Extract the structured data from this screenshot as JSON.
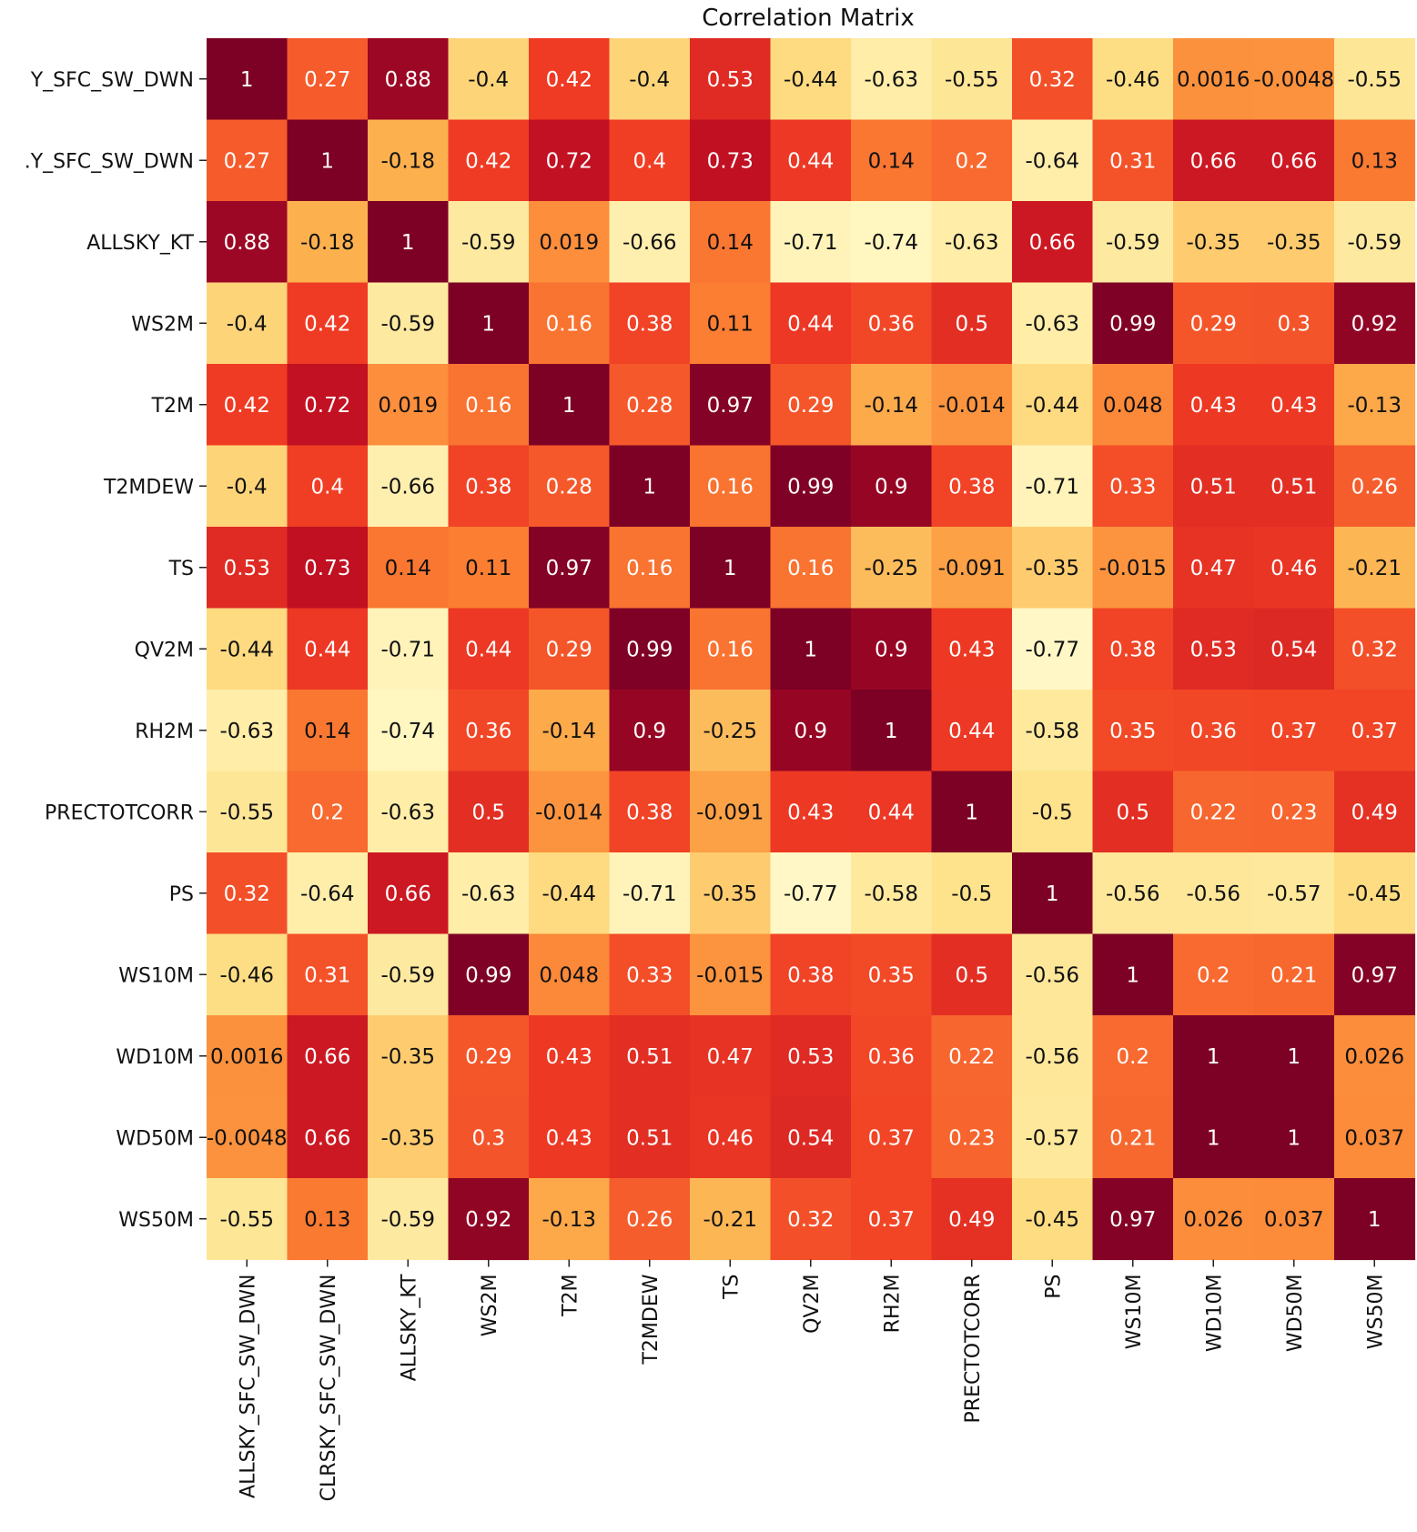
{
  "chart_data": {
    "type": "heatmap",
    "title": "Correlation Matrix",
    "colormap": "YlOrRd",
    "value_range": [
      -0.77,
      1
    ],
    "row_labels": [
      "Y_SFC_SW_DWN",
      ".Y_SFC_SW_DWN",
      "ALLSKY_KT",
      "WS2M",
      "T2M",
      "T2MDEW",
      "TS",
      "QV2M",
      "RH2M",
      "PRECTOTCORR",
      "PS",
      "WS10M",
      "WD10M",
      "WD50M",
      "WS50M"
    ],
    "col_labels": [
      "ALLSKY_SFC_SW_DWN",
      "CLRSKY_SFC_SW_DWN",
      "ALLSKY_KT",
      "WS2M",
      "T2M",
      "T2MDEW",
      "TS",
      "QV2M",
      "RH2M",
      "PRECTOTCORR",
      "PS",
      "WS10M",
      "WD10M",
      "WD50M",
      "WS50M"
    ],
    "values": [
      [
        1,
        0.27,
        0.88,
        -0.4,
        0.42,
        -0.4,
        0.53,
        -0.44,
        -0.63,
        -0.55,
        0.32,
        -0.46,
        0.0016,
        -0.0048,
        -0.55
      ],
      [
        0.27,
        1,
        -0.18,
        0.42,
        0.72,
        0.4,
        0.73,
        0.44,
        0.14,
        0.2,
        -0.64,
        0.31,
        0.66,
        0.66,
        0.13
      ],
      [
        0.88,
        -0.18,
        1,
        -0.59,
        0.019,
        -0.66,
        0.14,
        -0.71,
        -0.74,
        -0.63,
        0.66,
        -0.59,
        -0.35,
        -0.35,
        -0.59
      ],
      [
        -0.4,
        0.42,
        -0.59,
        1,
        0.16,
        0.38,
        0.11,
        0.44,
        0.36,
        0.5,
        -0.63,
        0.99,
        0.29,
        0.3,
        0.92
      ],
      [
        0.42,
        0.72,
        0.019,
        0.16,
        1,
        0.28,
        0.97,
        0.29,
        -0.14,
        -0.014,
        -0.44,
        0.048,
        0.43,
        0.43,
        -0.13
      ],
      [
        -0.4,
        0.4,
        -0.66,
        0.38,
        0.28,
        1,
        0.16,
        0.99,
        0.9,
        0.38,
        -0.71,
        0.33,
        0.51,
        0.51,
        0.26
      ],
      [
        0.53,
        0.73,
        0.14,
        0.11,
        0.97,
        0.16,
        1,
        0.16,
        -0.25,
        -0.091,
        -0.35,
        -0.015,
        0.47,
        0.46,
        -0.21
      ],
      [
        -0.44,
        0.44,
        -0.71,
        0.44,
        0.29,
        0.99,
        0.16,
        1,
        0.9,
        0.43,
        -0.77,
        0.38,
        0.53,
        0.54,
        0.32
      ],
      [
        -0.63,
        0.14,
        -0.74,
        0.36,
        -0.14,
        0.9,
        -0.25,
        0.9,
        1,
        0.44,
        -0.58,
        0.35,
        0.36,
        0.37,
        0.37
      ],
      [
        -0.55,
        0.2,
        -0.63,
        0.5,
        -0.014,
        0.38,
        -0.091,
        0.43,
        0.44,
        1,
        -0.5,
        0.5,
        0.22,
        0.23,
        0.49
      ],
      [
        0.32,
        -0.64,
        0.66,
        -0.63,
        -0.44,
        -0.71,
        -0.35,
        -0.77,
        -0.58,
        -0.5,
        1,
        -0.56,
        -0.56,
        -0.57,
        -0.45
      ],
      [
        -0.46,
        0.31,
        -0.59,
        0.99,
        0.048,
        0.33,
        -0.015,
        0.38,
        0.35,
        0.5,
        -0.56,
        1,
        0.2,
        0.21,
        0.97
      ],
      [
        0.0016,
        0.66,
        -0.35,
        0.29,
        0.43,
        0.51,
        0.47,
        0.53,
        0.36,
        0.22,
        -0.56,
        0.2,
        1,
        1,
        0.026
      ],
      [
        -0.0048,
        0.66,
        -0.35,
        0.3,
        0.43,
        0.51,
        0.46,
        0.54,
        0.37,
        0.23,
        -0.57,
        0.21,
        1,
        1,
        0.037
      ],
      [
        -0.55,
        0.13,
        -0.59,
        0.92,
        -0.13,
        0.26,
        -0.21,
        0.32,
        0.37,
        0.49,
        -0.45,
        0.97,
        0.026,
        0.037,
        1
      ]
    ],
    "colors": {
      "stops": [
        "#fff8c6",
        "#fee087",
        "#fdb14e",
        "#fb7d33",
        "#f03c24",
        "#c61222",
        "#7d0025"
      ],
      "text_light": "#ffffff",
      "text_dark": "#111111"
    }
  }
}
